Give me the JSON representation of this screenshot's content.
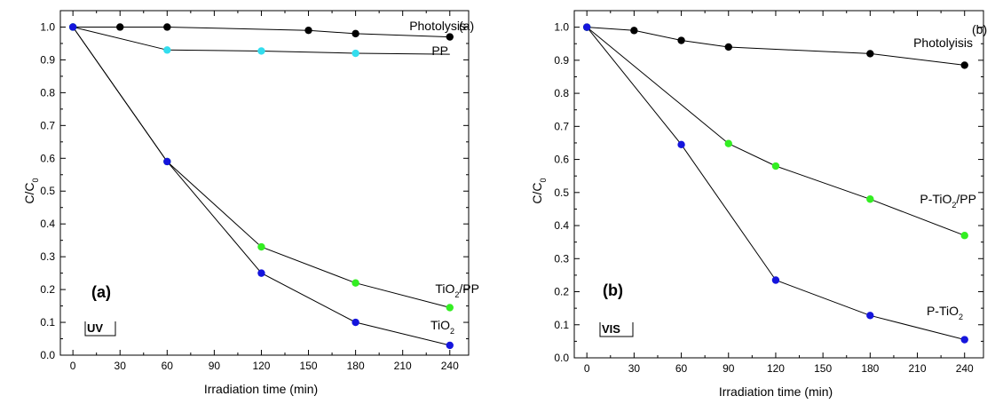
{
  "chart_data": [
    {
      "type": "line",
      "panel_label": "(a)",
      "corner_label": "(a)",
      "box_label": "UV",
      "xlabel": "Irradiation time (min)",
      "ylabel": "C/C0",
      "ylabel_main": "C/C",
      "ylabel_sub": "0",
      "xlim": [
        -8,
        252
      ],
      "ylim": [
        0,
        1.05
      ],
      "xticks": [
        "0",
        "30",
        "60",
        "90",
        "120",
        "150",
        "180",
        "210",
        "240"
      ],
      "yticks": [
        "0.0",
        "0.1",
        "0.2",
        "0.3",
        "0.4",
        "0.5",
        "0.6",
        "0.7",
        "0.8",
        "0.9",
        "1.0"
      ],
      "series": [
        {
          "name": "Photolysis",
          "label_main": "Photolysis",
          "label_sub": "",
          "label_rest": "",
          "color": "#000000",
          "x": [
            0,
            30,
            60,
            150,
            180,
            240
          ],
          "y": [
            1.0,
            1.0,
            1.0,
            0.99,
            0.98,
            0.97
          ]
        },
        {
          "name": "PP",
          "label_main": "PP",
          "label_sub": "",
          "label_rest": "",
          "color": "#33ddee",
          "x": [
            0,
            60,
            120,
            180,
            240
          ],
          "y": [
            1.0,
            0.93,
            0.927,
            0.92,
            0.917
          ],
          "marker_last": false
        },
        {
          "name": "TiO2/PP",
          "label_main": "TiO",
          "label_sub": "2",
          "label_rest": "/PP",
          "color": "#33ee22",
          "x": [
            0,
            60,
            120,
            180,
            240
          ],
          "y": [
            1.0,
            0.59,
            0.33,
            0.22,
            0.145
          ]
        },
        {
          "name": "TiO2",
          "label_main": "TiO",
          "label_sub": "2",
          "label_rest": "",
          "color": "#1515dd",
          "x": [
            0,
            60,
            120,
            180,
            240
          ],
          "y": [
            1.0,
            0.59,
            0.25,
            0.1,
            0.03
          ]
        }
      ]
    },
    {
      "type": "line",
      "panel_label": "(b)",
      "corner_label": "(b)",
      "box_label": "VIS",
      "xlabel": "Irradiation time (min)",
      "ylabel": "C/C0",
      "ylabel_main": "C/C",
      "ylabel_sub": "0",
      "xlim": [
        -8,
        252
      ],
      "ylim": [
        0,
        1.05
      ],
      "xticks": [
        "0",
        "30",
        "60",
        "90",
        "120",
        "150",
        "180",
        "210",
        "240"
      ],
      "yticks": [
        "0.0",
        "0.1",
        "0.2",
        "0.3",
        "0.4",
        "0.5",
        "0.6",
        "0.7",
        "0.8",
        "0.9",
        "1.0"
      ],
      "series": [
        {
          "name": "Photolyisis",
          "label_main": "Photolyisis",
          "label_sub": "",
          "label_rest": "",
          "color": "#000000",
          "x": [
            0,
            30,
            60,
            90,
            180,
            240
          ],
          "y": [
            1.0,
            0.99,
            0.96,
            0.94,
            0.92,
            0.885
          ]
        },
        {
          "name": "P-TiO2/PP",
          "label_main": "P-TiO",
          "label_sub": "2",
          "label_rest": "/PP",
          "color": "#33ee22",
          "x": [
            0,
            90,
            120,
            180,
            240
          ],
          "y": [
            1.0,
            0.648,
            0.58,
            0.48,
            0.37
          ]
        },
        {
          "name": "P-TiO2",
          "label_main": "P-TiO",
          "label_sub": "2",
          "label_rest": "",
          "color": "#1515dd",
          "x": [
            0,
            60,
            120,
            180,
            240
          ],
          "y": [
            1.0,
            0.645,
            0.235,
            0.128,
            0.055
          ]
        }
      ]
    }
  ]
}
